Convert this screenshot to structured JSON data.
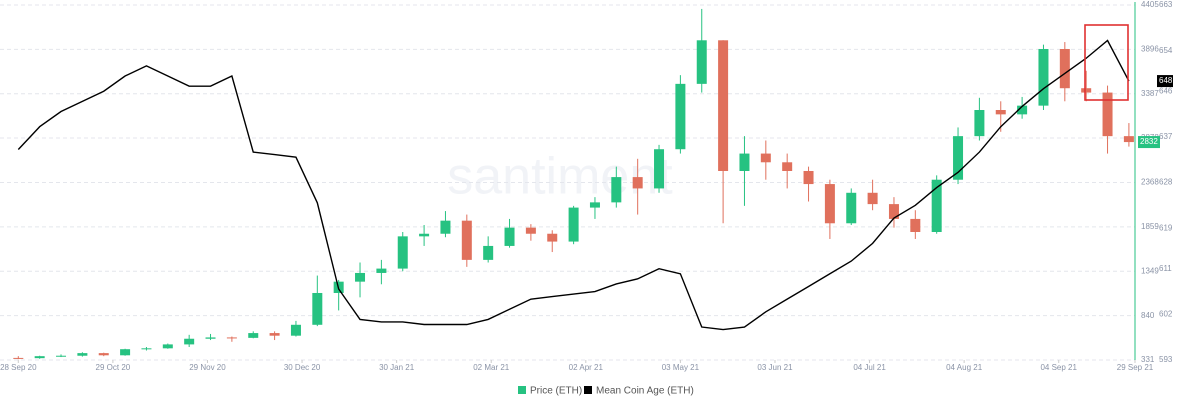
{
  "chart_data": {
    "type": "candlestick",
    "watermark": "santiment",
    "x": [
      "2020-09-28",
      "2020-10-05",
      "2020-10-12",
      "2020-10-19",
      "2020-10-26",
      "2020-11-02",
      "2020-11-09",
      "2020-11-16",
      "2020-11-23",
      "2020-11-30",
      "2020-12-07",
      "2020-12-14",
      "2020-12-21",
      "2020-12-28",
      "2021-01-04",
      "2021-01-11",
      "2021-01-18",
      "2021-01-25",
      "2021-02-01",
      "2021-02-08",
      "2021-02-15",
      "2021-02-22",
      "2021-03-01",
      "2021-03-08",
      "2021-03-15",
      "2021-03-22",
      "2021-03-29",
      "2021-04-05",
      "2021-04-12",
      "2021-04-19",
      "2021-04-26",
      "2021-05-03",
      "2021-05-10",
      "2021-05-17",
      "2021-05-24",
      "2021-05-31",
      "2021-06-07",
      "2021-06-14",
      "2021-06-21",
      "2021-06-28",
      "2021-07-05",
      "2021-07-12",
      "2021-07-19",
      "2021-07-26",
      "2021-08-02",
      "2021-08-09",
      "2021-08-16",
      "2021-08-23",
      "2021-08-30",
      "2021-09-06",
      "2021-09-13",
      "2021-09-20",
      "2021-09-27"
    ],
    "xlim": [
      "2020-09-22",
      "2021-09-29"
    ],
    "xticks": [
      {
        "value": "2020-09-28",
        "label": "28 Sep 20"
      },
      {
        "value": "2020-10-29",
        "label": "29 Oct 20"
      },
      {
        "value": "2020-11-29",
        "label": "29 Nov 20"
      },
      {
        "value": "2020-12-30",
        "label": "30 Dec 20"
      },
      {
        "value": "2021-01-30",
        "label": "30 Jan 21"
      },
      {
        "value": "2021-03-02",
        "label": "02 Mar 21"
      },
      {
        "value": "2021-04-02",
        "label": "02 Apr 21"
      },
      {
        "value": "2021-05-03",
        "label": "03 May 21"
      },
      {
        "value": "2021-06-03",
        "label": "03 Jun 21"
      },
      {
        "value": "2021-07-04",
        "label": "04 Jul 21"
      },
      {
        "value": "2021-08-04",
        "label": "04 Aug 21"
      },
      {
        "value": "2021-09-04",
        "label": "04 Sep 21"
      },
      {
        "value": "2021-09-29",
        "label": "29 Sep 21"
      }
    ],
    "ylim": [
      331,
      4405
    ],
    "yticks": [
      331,
      840,
      1349,
      1859,
      2368,
      2878,
      3387,
      3896,
      4405
    ],
    "y2lim": [
      593,
      663
    ],
    "y2ticks": [
      593,
      602,
      611,
      619,
      628,
      637,
      646,
      654,
      663
    ],
    "grid": true,
    "series": [
      {
        "name": "Price (ETH)",
        "type": "candlestick",
        "color": "#26c281",
        "down_color": "#e0705c",
        "open": [
          355,
          352,
          375,
          380,
          410,
          385,
          455,
          465,
          510,
          575,
          590,
          585,
          640,
          610,
          735,
          1100,
          1230,
          1330,
          1380,
          1750,
          1780,
          1930,
          1480,
          1640,
          1850,
          1780,
          1690,
          2080,
          2140,
          2430,
          2300,
          2750,
          3500,
          4000,
          2500,
          2700,
          2600,
          2500,
          2350,
          1900,
          2250,
          2120,
          1950,
          1800,
          2400,
          2900,
          3200,
          3150,
          3250,
          3900,
          3450,
          3400,
          2900
        ],
        "high": [
          375,
          380,
          395,
          420,
          415,
          460,
          480,
          520,
          620,
          630,
          600,
          660,
          660,
          780,
          1300,
          1250,
          1450,
          1480,
          1800,
          1880,
          2040,
          2000,
          1750,
          1950,
          1890,
          1820,
          2100,
          2200,
          2550,
          2640,
          2800,
          3600,
          4360,
          4000,
          2900,
          2850,
          2700,
          2550,
          2400,
          2300,
          2400,
          2200,
          2050,
          2450,
          3000,
          3340,
          3300,
          3350,
          3950,
          3980,
          3650,
          3480,
          3050
        ],
        "low": [
          340,
          345,
          365,
          370,
          375,
          380,
          440,
          460,
          480,
          560,
          540,
          580,
          560,
          600,
          720,
          900,
          1050,
          1200,
          1350,
          1640,
          1740,
          1400,
          1450,
          1620,
          1700,
          1570,
          1660,
          1950,
          2080,
          2000,
          2250,
          2700,
          3400,
          1900,
          2100,
          2400,
          2300,
          2150,
          1720,
          1880,
          2050,
          1850,
          1720,
          1780,
          2350,
          2850,
          2950,
          3100,
          3200,
          3300,
          3300,
          2700,
          2780
        ],
        "close": [
          352,
          375,
          380,
          410,
          385,
          455,
          465,
          510,
          575,
          590,
          585,
          640,
          610,
          735,
          1100,
          1230,
          1330,
          1380,
          1750,
          1780,
          1930,
          1480,
          1640,
          1850,
          1780,
          1690,
          2080,
          2140,
          2430,
          2300,
          2750,
          3500,
          4000,
          2500,
          2700,
          2600,
          2500,
          2350,
          1900,
          2250,
          2120,
          1950,
          1800,
          2400,
          2900,
          3200,
          3150,
          3250,
          3900,
          3450,
          3400,
          2900,
          2832
        ]
      },
      {
        "name": "Mean Coin Age (ETH)",
        "type": "line",
        "axis": "y2",
        "color": "#000000",
        "values": [
          634.5,
          639,
          642,
          644,
          646,
          649,
          651,
          649,
          647,
          647,
          649,
          634,
          633.5,
          633,
          624,
          607,
          601,
          600.5,
          600.5,
          600,
          600,
          600,
          601,
          603,
          605,
          605.5,
          606,
          606.5,
          608,
          609,
          611,
          610,
          599.5,
          599,
          599.5,
          602.5,
          605,
          607.5,
          610,
          612.5,
          616,
          621,
          623.5,
          627,
          630,
          634,
          639,
          643,
          646.5,
          649.5,
          652.5,
          656,
          648
        ]
      }
    ]
  }
}
